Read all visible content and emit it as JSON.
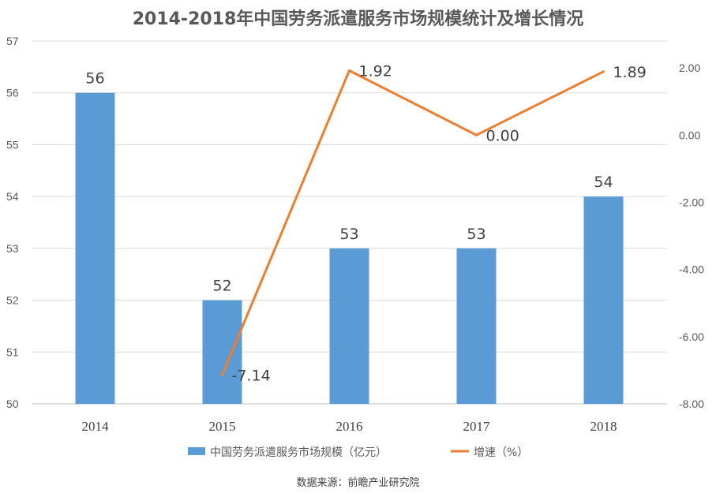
{
  "chart_data": {
    "type": "bar",
    "title": "2014-2018年中国劳务派遣服务市场规模统计及增长情况",
    "categories": [
      "2014",
      "2015",
      "2016",
      "2017",
      "2018"
    ],
    "series": [
      {
        "name": "中国劳务派遣服务市场规模（亿元）",
        "type": "bar",
        "axis": "left",
        "color": "#5b9bd5",
        "values": [
          56,
          52,
          53,
          53,
          54
        ],
        "labels": [
          "56",
          "52",
          "53",
          "53",
          "54"
        ]
      },
      {
        "name": "增速（%）",
        "type": "line",
        "axis": "right",
        "color": "#ed7d31",
        "values": [
          -7.14,
          1.92,
          0.0,
          1.89
        ],
        "x": [
          "2015",
          "2016",
          "2017",
          "2018"
        ],
        "labels": [
          "-7.14",
          "1.92",
          "0.00",
          "1.89"
        ]
      }
    ],
    "y_left": {
      "ylim": [
        50,
        57
      ],
      "ticks": [
        "50",
        "51",
        "52",
        "53",
        "54",
        "55",
        "56",
        "57"
      ]
    },
    "y_right": {
      "ylim": [
        -8,
        2.8
      ],
      "ticks": [
        "-8.00",
        "-6.00",
        "-4.00",
        "-2.00",
        "0.00",
        "2.00"
      ]
    },
    "grid": true,
    "legend_position": "bottom",
    "source": "数据来源：前瞻产业研究院"
  }
}
